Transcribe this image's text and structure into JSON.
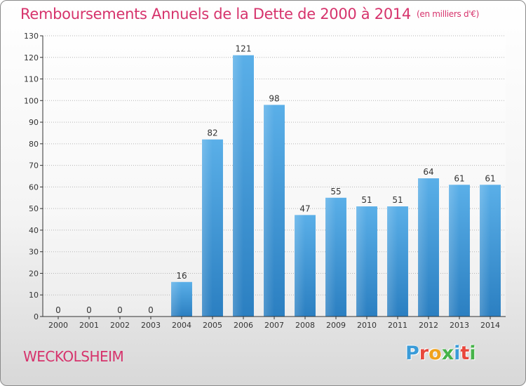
{
  "page": {
    "title": "Remboursements Annuels de la Dette de 2000 à 2014",
    "unit": "(en milliers d'€)",
    "commune": "WECKOLSHEIM",
    "logo_text": "Proxiti",
    "logo_colors": [
      "#3a9bd8",
      "#e8473c",
      "#f0a21d",
      "#47b34a",
      "#3a9bd8",
      "#e8473c",
      "#47b34a"
    ]
  },
  "chart_data": {
    "type": "bar",
    "title": "Remboursements Annuels de la Dette de 2000 à 2014",
    "categories": [
      "2000",
      "2001",
      "2002",
      "2003",
      "2004",
      "2005",
      "2006",
      "2007",
      "2008",
      "2009",
      "2010",
      "2011",
      "2012",
      "2013",
      "2014"
    ],
    "values": [
      0,
      0,
      0,
      0,
      16,
      82,
      121,
      98,
      47,
      55,
      51,
      51,
      64,
      61,
      61
    ],
    "ylim": [
      0,
      130
    ],
    "yticks": [
      0,
      10,
      20,
      30,
      40,
      50,
      60,
      70,
      80,
      90,
      100,
      110,
      120,
      130
    ],
    "grid": true,
    "bar_color": "#4aa3e3",
    "bar_color_dark": "#2b7fc1"
  }
}
